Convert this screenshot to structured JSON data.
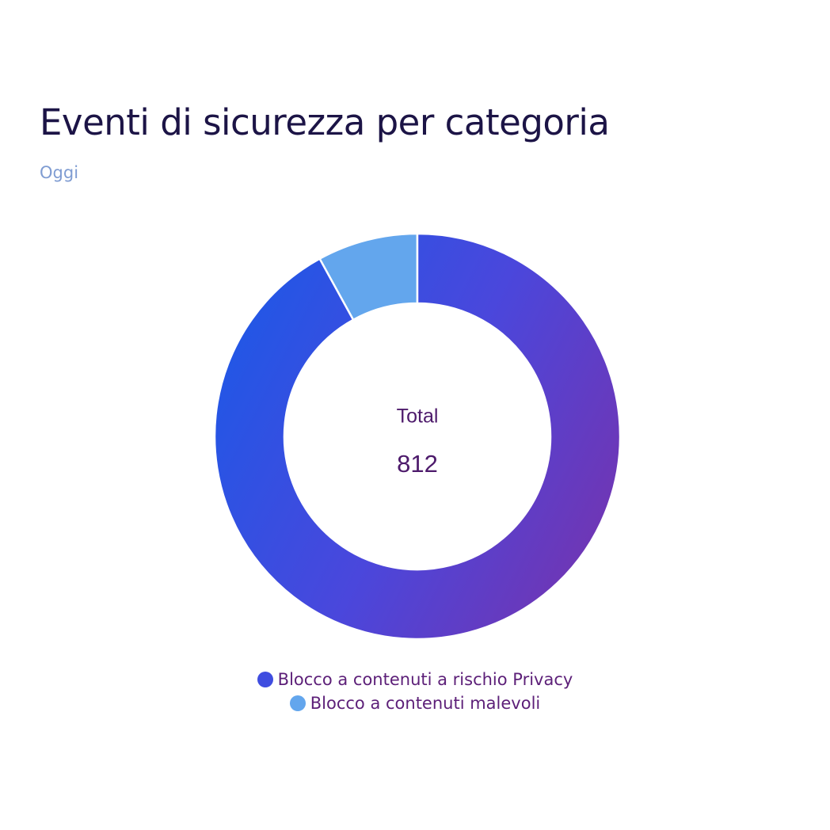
{
  "chart_data": {
    "type": "donut",
    "title": "Eventi di sicurezza per categoria",
    "subtitle": "Oggi",
    "categories": [
      "Blocco a contenuti a rischio Privacy",
      "Blocco a contenuti malevoli"
    ],
    "values": [
      747,
      65
    ],
    "colors": [
      "#3f4de0",
      "#63a6ed"
    ],
    "total": {
      "label": "Total",
      "value": 812
    }
  }
}
